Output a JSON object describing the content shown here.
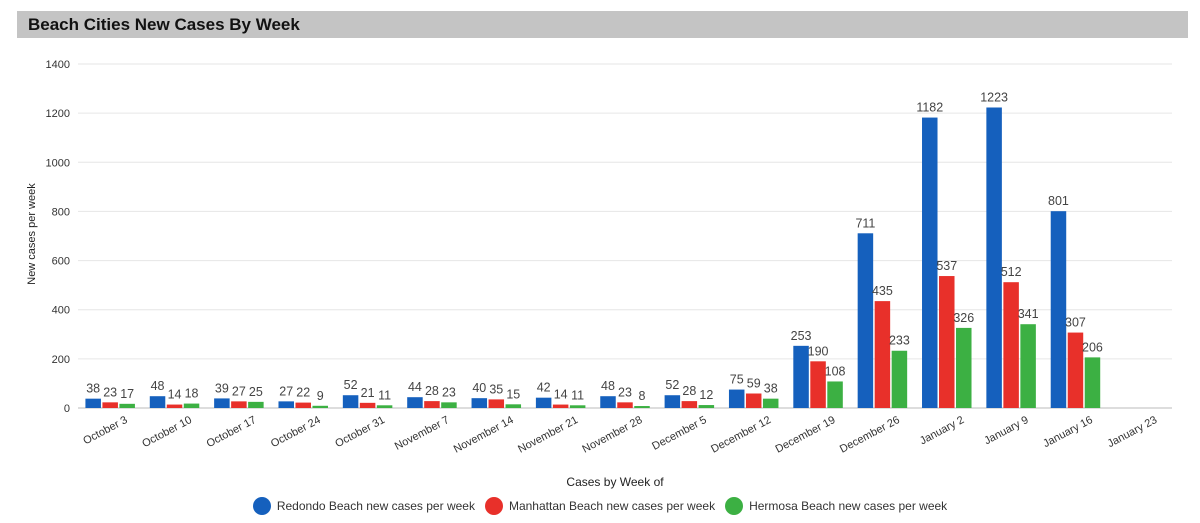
{
  "header": {
    "title": "Beach Cities New Cases By Week"
  },
  "chart_data": {
    "type": "bar",
    "title": "Beach Cities New Cases By Week",
    "xlabel": "Cases by Week of",
    "ylabel": "New cases per week",
    "ylim": [
      0,
      1400
    ],
    "yticks": [
      0,
      200,
      400,
      600,
      800,
      1000,
      1200,
      1400
    ],
    "grid": true,
    "legend_position": "bottom",
    "categories": [
      "October 3",
      "October 10",
      "October 17",
      "October 24",
      "October 31",
      "November 7",
      "November 14",
      "November 21",
      "November 28",
      "December 5",
      "December 12",
      "December 19",
      "December 26",
      "January 2",
      "January 9",
      "January 16",
      "January 23"
    ],
    "series": [
      {
        "name": "Redondo Beach new cases per week",
        "color": "#1560bd",
        "values": [
          38,
          48,
          39,
          27,
          52,
          44,
          40,
          42,
          48,
          52,
          75,
          253,
          711,
          1182,
          1223,
          801,
          null
        ]
      },
      {
        "name": "Manhattan Beach new cases per week",
        "color": "#e8302a",
        "values": [
          23,
          14,
          27,
          22,
          21,
          28,
          35,
          14,
          23,
          28,
          59,
          190,
          435,
          537,
          512,
          307,
          null
        ]
      },
      {
        "name": "Hermosa Beach new cases per week",
        "color": "#3cb043",
        "values": [
          17,
          18,
          25,
          9,
          11,
          23,
          15,
          11,
          8,
          12,
          38,
          108,
          233,
          326,
          341,
          206,
          null
        ]
      }
    ]
  }
}
